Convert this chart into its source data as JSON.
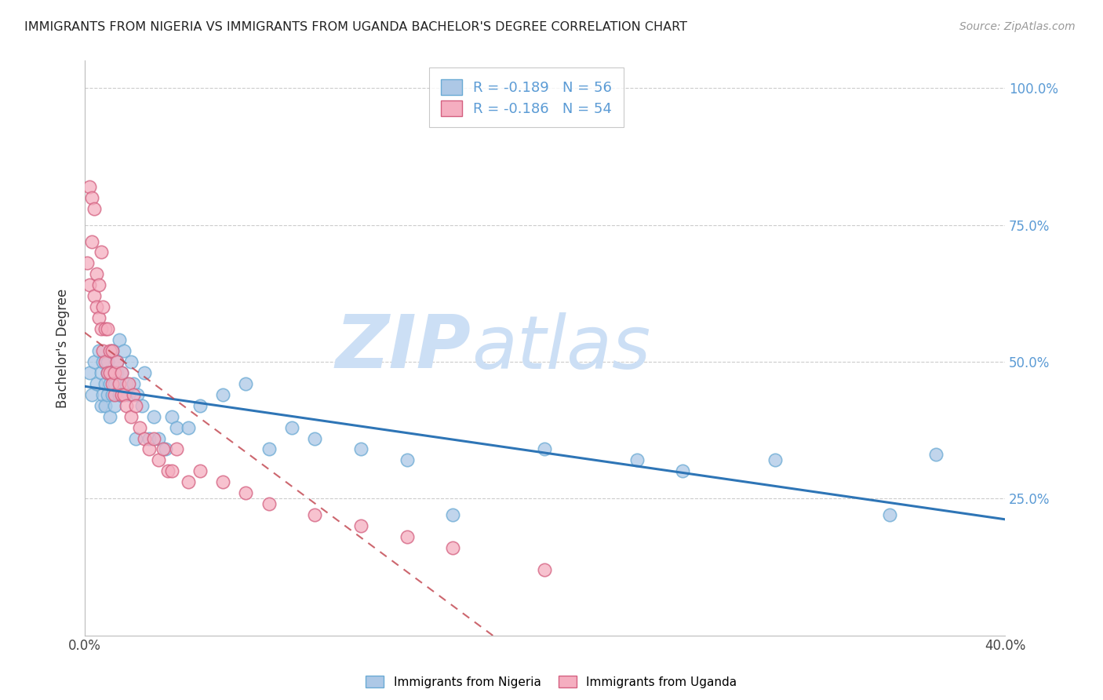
{
  "title": "IMMIGRANTS FROM NIGERIA VS IMMIGRANTS FROM UGANDA BACHELOR'S DEGREE CORRELATION CHART",
  "source": "Source: ZipAtlas.com",
  "ylabel": "Bachelor's Degree",
  "ytick_right_color": "#5b9bd5",
  "legend_nigeria": "Immigrants from Nigeria",
  "legend_uganda": "Immigrants from Uganda",
  "nigeria_R": -0.189,
  "nigeria_N": 56,
  "uganda_R": -0.186,
  "uganda_N": 54,
  "nigeria_color": "#adc8e6",
  "uganda_color": "#f5aec0",
  "nigeria_line_color": "#2e75b6",
  "uganda_line_color": "#c0404a",
  "nigeria_edge_color": "#6aaad4",
  "uganda_edge_color": "#d46080",
  "watermark_zip": "ZIP",
  "watermark_atlas": "atlas",
  "watermark_color": "#ccdff5",
  "x_min": 0.0,
  "x_max": 0.4,
  "y_min": 0.0,
  "y_max": 1.05,
  "nigeria_x": [
    0.002,
    0.003,
    0.004,
    0.005,
    0.006,
    0.007,
    0.007,
    0.008,
    0.008,
    0.009,
    0.009,
    0.01,
    0.01,
    0.01,
    0.011,
    0.011,
    0.012,
    0.012,
    0.013,
    0.013,
    0.014,
    0.014,
    0.015,
    0.015,
    0.016,
    0.017,
    0.018,
    0.019,
    0.02,
    0.021,
    0.022,
    0.023,
    0.025,
    0.026,
    0.028,
    0.03,
    0.032,
    0.035,
    0.038,
    0.04,
    0.045,
    0.05,
    0.06,
    0.07,
    0.08,
    0.09,
    0.1,
    0.12,
    0.14,
    0.16,
    0.2,
    0.24,
    0.26,
    0.3,
    0.35,
    0.37
  ],
  "nigeria_y": [
    0.48,
    0.44,
    0.5,
    0.46,
    0.52,
    0.48,
    0.42,
    0.5,
    0.44,
    0.46,
    0.42,
    0.48,
    0.44,
    0.5,
    0.46,
    0.4,
    0.52,
    0.44,
    0.46,
    0.42,
    0.5,
    0.48,
    0.44,
    0.54,
    0.48,
    0.52,
    0.46,
    0.44,
    0.5,
    0.46,
    0.36,
    0.44,
    0.42,
    0.48,
    0.36,
    0.4,
    0.36,
    0.34,
    0.4,
    0.38,
    0.38,
    0.42,
    0.44,
    0.46,
    0.34,
    0.38,
    0.36,
    0.34,
    0.32,
    0.22,
    0.34,
    0.32,
    0.3,
    0.32,
    0.22,
    0.33
  ],
  "uganda_x": [
    0.001,
    0.002,
    0.002,
    0.003,
    0.003,
    0.004,
    0.004,
    0.005,
    0.005,
    0.006,
    0.006,
    0.007,
    0.007,
    0.008,
    0.008,
    0.009,
    0.009,
    0.01,
    0.01,
    0.011,
    0.011,
    0.012,
    0.012,
    0.013,
    0.013,
    0.014,
    0.015,
    0.016,
    0.016,
    0.017,
    0.018,
    0.019,
    0.02,
    0.021,
    0.022,
    0.024,
    0.026,
    0.028,
    0.03,
    0.032,
    0.034,
    0.036,
    0.038,
    0.04,
    0.045,
    0.05,
    0.06,
    0.07,
    0.08,
    0.1,
    0.12,
    0.14,
    0.16,
    0.2
  ],
  "uganda_y": [
    0.68,
    0.82,
    0.64,
    0.8,
    0.72,
    0.78,
    0.62,
    0.6,
    0.66,
    0.58,
    0.64,
    0.56,
    0.7,
    0.52,
    0.6,
    0.5,
    0.56,
    0.48,
    0.56,
    0.52,
    0.48,
    0.46,
    0.52,
    0.48,
    0.44,
    0.5,
    0.46,
    0.44,
    0.48,
    0.44,
    0.42,
    0.46,
    0.4,
    0.44,
    0.42,
    0.38,
    0.36,
    0.34,
    0.36,
    0.32,
    0.34,
    0.3,
    0.3,
    0.34,
    0.28,
    0.3,
    0.28,
    0.26,
    0.24,
    0.22,
    0.2,
    0.18,
    0.16,
    0.12
  ]
}
